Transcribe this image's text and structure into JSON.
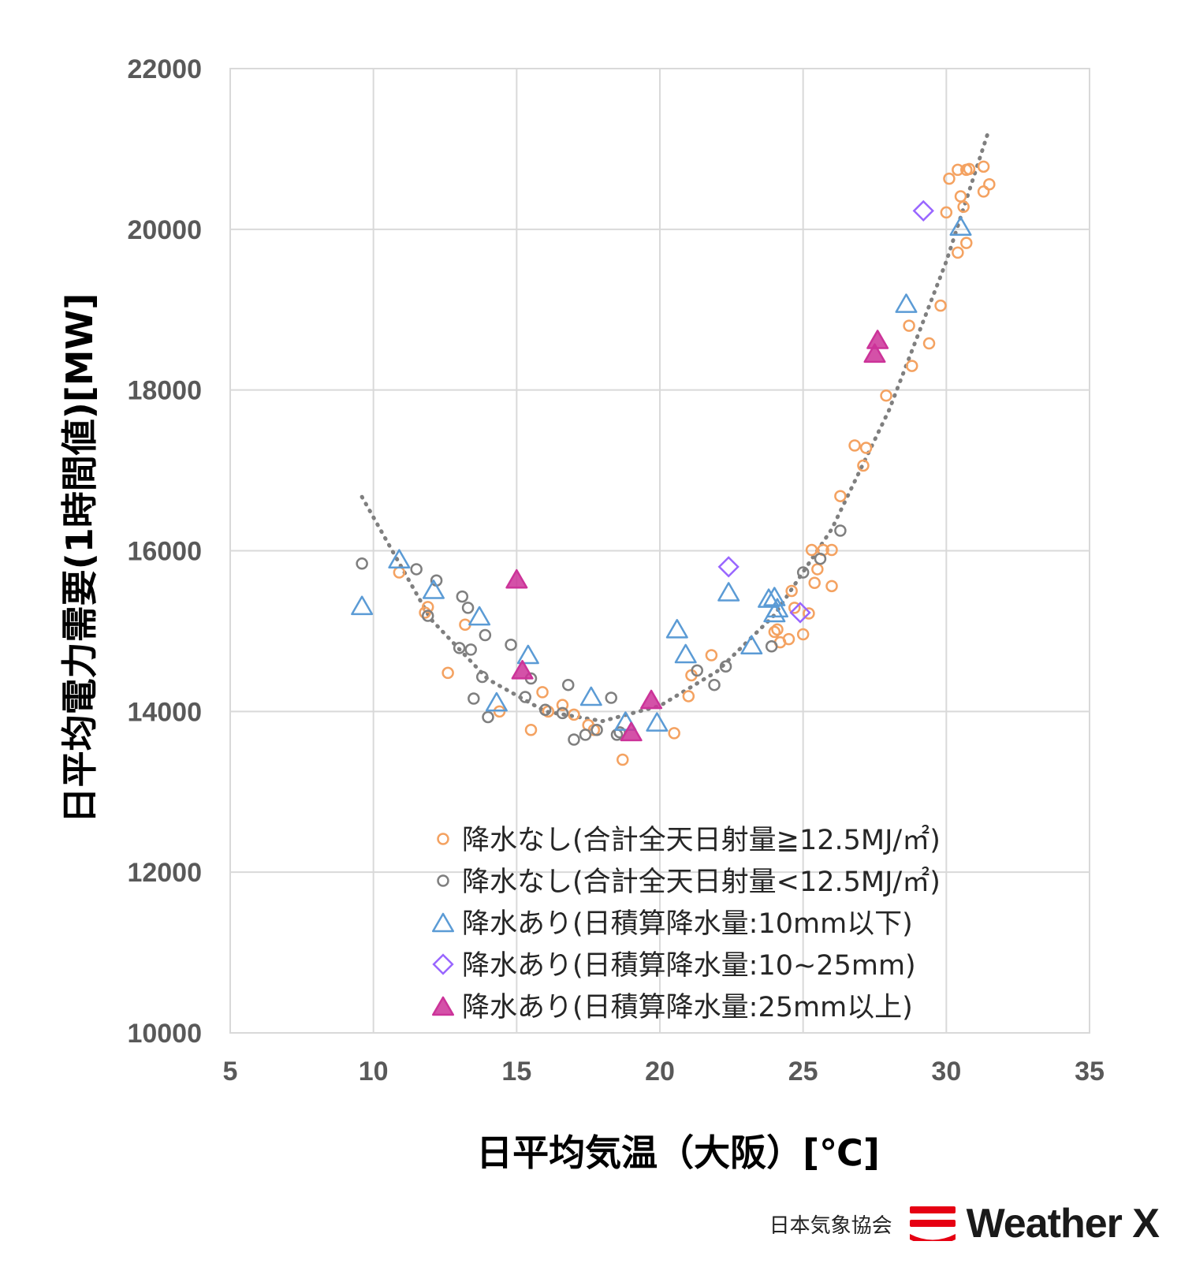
{
  "chart_data": {
    "type": "scatter",
    "xlabel": "日平均気温（大阪）[℃]",
    "ylabel": "日平均電力需要(1時間値)[MW]",
    "xlim": [
      5,
      35
    ],
    "ylim": [
      10000,
      22000
    ],
    "xticks": [
      "5",
      "10",
      "15",
      "20",
      "25",
      "30",
      "35"
    ],
    "yticks": [
      "10000",
      "12000",
      "14000",
      "16000",
      "18000",
      "20000",
      "22000"
    ],
    "grid": true,
    "legend_position": "bottom-right",
    "series": [
      {
        "name": "降水なし(合計全天日射量≧12.5MJ/㎡)",
        "marker": "circle",
        "color": "#F4A261",
        "points": [
          [
            10.9,
            15730
          ],
          [
            11.8,
            15230
          ],
          [
            11.9,
            15300
          ],
          [
            12.6,
            14480
          ],
          [
            13.2,
            15080
          ],
          [
            14.4,
            14000
          ],
          [
            15.5,
            13770
          ],
          [
            15.9,
            14240
          ],
          [
            16.1,
            14000
          ],
          [
            16.6,
            14080
          ],
          [
            17.0,
            13960
          ],
          [
            17.5,
            13830
          ],
          [
            17.7,
            13770
          ],
          [
            18.7,
            13400
          ],
          [
            20.5,
            13730
          ],
          [
            21.0,
            14190
          ],
          [
            21.1,
            14450
          ],
          [
            21.8,
            14700
          ],
          [
            24.0,
            14990
          ],
          [
            24.1,
            15020
          ],
          [
            24.2,
            14860
          ],
          [
            24.5,
            14900
          ],
          [
            24.6,
            15500
          ],
          [
            24.7,
            15290
          ],
          [
            25.0,
            14960
          ],
          [
            25.2,
            15220
          ],
          [
            25.3,
            16010
          ],
          [
            25.4,
            15600
          ],
          [
            25.5,
            15770
          ],
          [
            25.7,
            16010
          ],
          [
            26.0,
            15560
          ],
          [
            26.0,
            16010
          ],
          [
            26.3,
            16680
          ],
          [
            26.8,
            17310
          ],
          [
            27.1,
            17060
          ],
          [
            27.2,
            17280
          ],
          [
            27.9,
            17930
          ],
          [
            28.7,
            18800
          ],
          [
            28.8,
            18300
          ],
          [
            29.4,
            18580
          ],
          [
            29.8,
            19050
          ],
          [
            30.0,
            20210
          ],
          [
            30.1,
            20630
          ],
          [
            30.4,
            20740
          ],
          [
            30.5,
            20410
          ],
          [
            30.6,
            20280
          ],
          [
            30.4,
            19710
          ],
          [
            30.7,
            19830
          ],
          [
            30.7,
            20740
          ],
          [
            30.8,
            20750
          ],
          [
            31.3,
            20780
          ],
          [
            31.3,
            20470
          ],
          [
            31.5,
            20560
          ]
        ]
      },
      {
        "name": "降水なし(合計全天日射量<12.5MJ/㎡)",
        "marker": "circle",
        "color": "#7F7F7F",
        "points": [
          [
            9.6,
            15840
          ],
          [
            11.5,
            15770
          ],
          [
            11.9,
            15190
          ],
          [
            12.2,
            15630
          ],
          [
            13.0,
            14790
          ],
          [
            13.1,
            15430
          ],
          [
            13.3,
            15290
          ],
          [
            13.4,
            14770
          ],
          [
            13.5,
            14160
          ],
          [
            13.8,
            14430
          ],
          [
            13.9,
            14950
          ],
          [
            14.0,
            13930
          ],
          [
            14.8,
            14830
          ],
          [
            15.3,
            14180
          ],
          [
            15.5,
            14410
          ],
          [
            16.0,
            14020
          ],
          [
            16.6,
            13980
          ],
          [
            16.8,
            14330
          ],
          [
            17.0,
            13650
          ],
          [
            17.4,
            13710
          ],
          [
            17.8,
            13770
          ],
          [
            18.3,
            14170
          ],
          [
            18.5,
            13710
          ],
          [
            18.6,
            13740
          ],
          [
            21.3,
            14510
          ],
          [
            21.9,
            14330
          ],
          [
            22.3,
            14560
          ],
          [
            23.9,
            14810
          ],
          [
            25.0,
            15730
          ],
          [
            25.6,
            15900
          ],
          [
            26.3,
            16250
          ]
        ]
      },
      {
        "name": "降水あり(日積算降水量:10mm以下)",
        "marker": "triangle",
        "color": "#5B9BD5",
        "points": [
          [
            9.6,
            15320
          ],
          [
            10.9,
            15900
          ],
          [
            12.1,
            15520
          ],
          [
            13.7,
            15190
          ],
          [
            14.3,
            14120
          ],
          [
            15.4,
            14710
          ],
          [
            17.6,
            14190
          ],
          [
            18.8,
            13880
          ],
          [
            19.9,
            13870
          ],
          [
            20.6,
            15030
          ],
          [
            20.9,
            14720
          ],
          [
            22.4,
            15490
          ],
          [
            23.2,
            14830
          ],
          [
            23.8,
            15410
          ],
          [
            24.0,
            15430
          ],
          [
            24.0,
            15230
          ],
          [
            24.1,
            15290
          ],
          [
            28.6,
            19080
          ],
          [
            30.5,
            20040
          ]
        ]
      },
      {
        "name": "降水あり(日積算降水量:10~25mm)",
        "marker": "diamond",
        "color": "#9966FF",
        "points": [
          [
            22.4,
            15800
          ],
          [
            24.9,
            15230
          ],
          [
            29.2,
            20230
          ]
        ]
      },
      {
        "name": "降水あり(日積算降水量:25mm以上)",
        "marker": "triangle-filled",
        "color": "#CC3399",
        "points": [
          [
            15.0,
            15650
          ],
          [
            15.2,
            14520
          ],
          [
            19.0,
            13750
          ],
          [
            19.7,
            14150
          ],
          [
            27.5,
            18460
          ],
          [
            27.6,
            18630
          ]
        ]
      }
    ],
    "trendline": {
      "type": "polynomial",
      "style": "dotted",
      "color": "#7F7F7F",
      "x_range": [
        9.6,
        31.5
      ],
      "points": [
        [
          9.6,
          16670
        ],
        [
          12,
          15150
        ],
        [
          14,
          14400
        ],
        [
          16,
          14000
        ],
        [
          18,
          13880
        ],
        [
          20,
          14070
        ],
        [
          22,
          14500
        ],
        [
          24,
          15200
        ],
        [
          26,
          16270
        ],
        [
          28,
          17750
        ],
        [
          30,
          19600
        ],
        [
          31.5,
          21250
        ]
      ]
    }
  },
  "brand": {
    "organization": "日本気象協会",
    "product": "Weather X",
    "mark_color": "#E60012"
  }
}
